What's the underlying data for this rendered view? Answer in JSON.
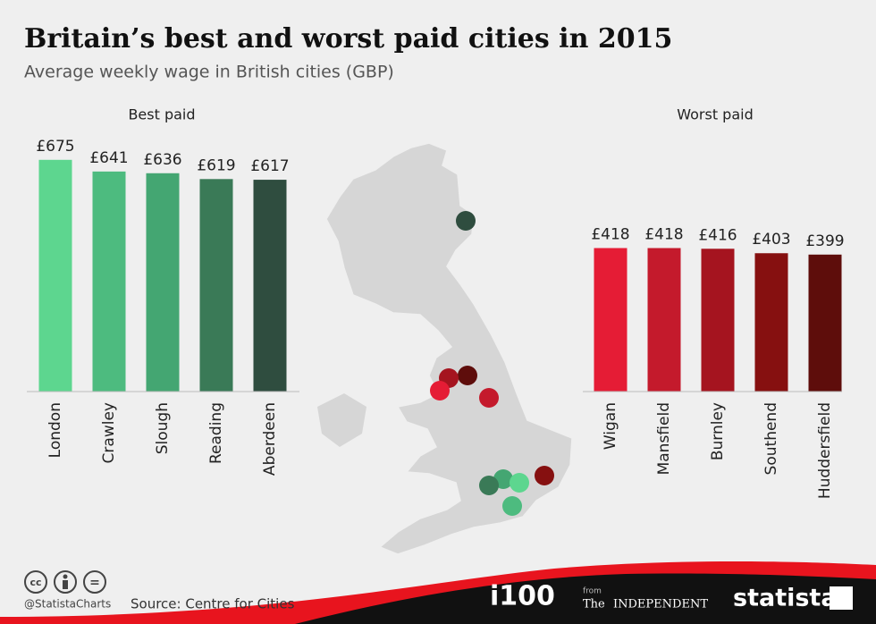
{
  "title": "Britain’s best and worst paid cities in 2015",
  "subtitle": "Average weekly wage in British cities (GBP)",
  "chart_data": [
    {
      "type": "bar",
      "title": "Best paid",
      "categories": [
        "London",
        "Crawley",
        "Slough",
        "Reading",
        "Aberdeen"
      ],
      "values": [
        675,
        641,
        636,
        619,
        617
      ],
      "value_labels": [
        "£675",
        "£641",
        "£636",
        "£619",
        "£617"
      ],
      "colors": [
        "#5dd68f",
        "#4dbb7f",
        "#44a672",
        "#3a7a57",
        "#2f4d3f"
      ]
    },
    {
      "type": "bar",
      "title": "Worst paid",
      "categories": [
        "Wigan",
        "Mansfield",
        "Burnley",
        "Southend",
        "Huddersfield"
      ],
      "values": [
        418,
        418,
        416,
        403,
        399
      ],
      "value_labels": [
        "£418",
        "£418",
        "£416",
        "£403",
        "£399"
      ],
      "colors": [
        "#e51c35",
        "#c41a2c",
        "#a5141f",
        "#861010",
        "#5e0d0b"
      ]
    }
  ],
  "footer": {
    "license": "cc",
    "nd": "=",
    "handle": "@StatistaCharts",
    "source": "Source: Centre for Cities",
    "i100": "i100",
    "from": "from",
    "the": "The",
    "independent": "INDEPENDENT",
    "statista": "statista"
  }
}
